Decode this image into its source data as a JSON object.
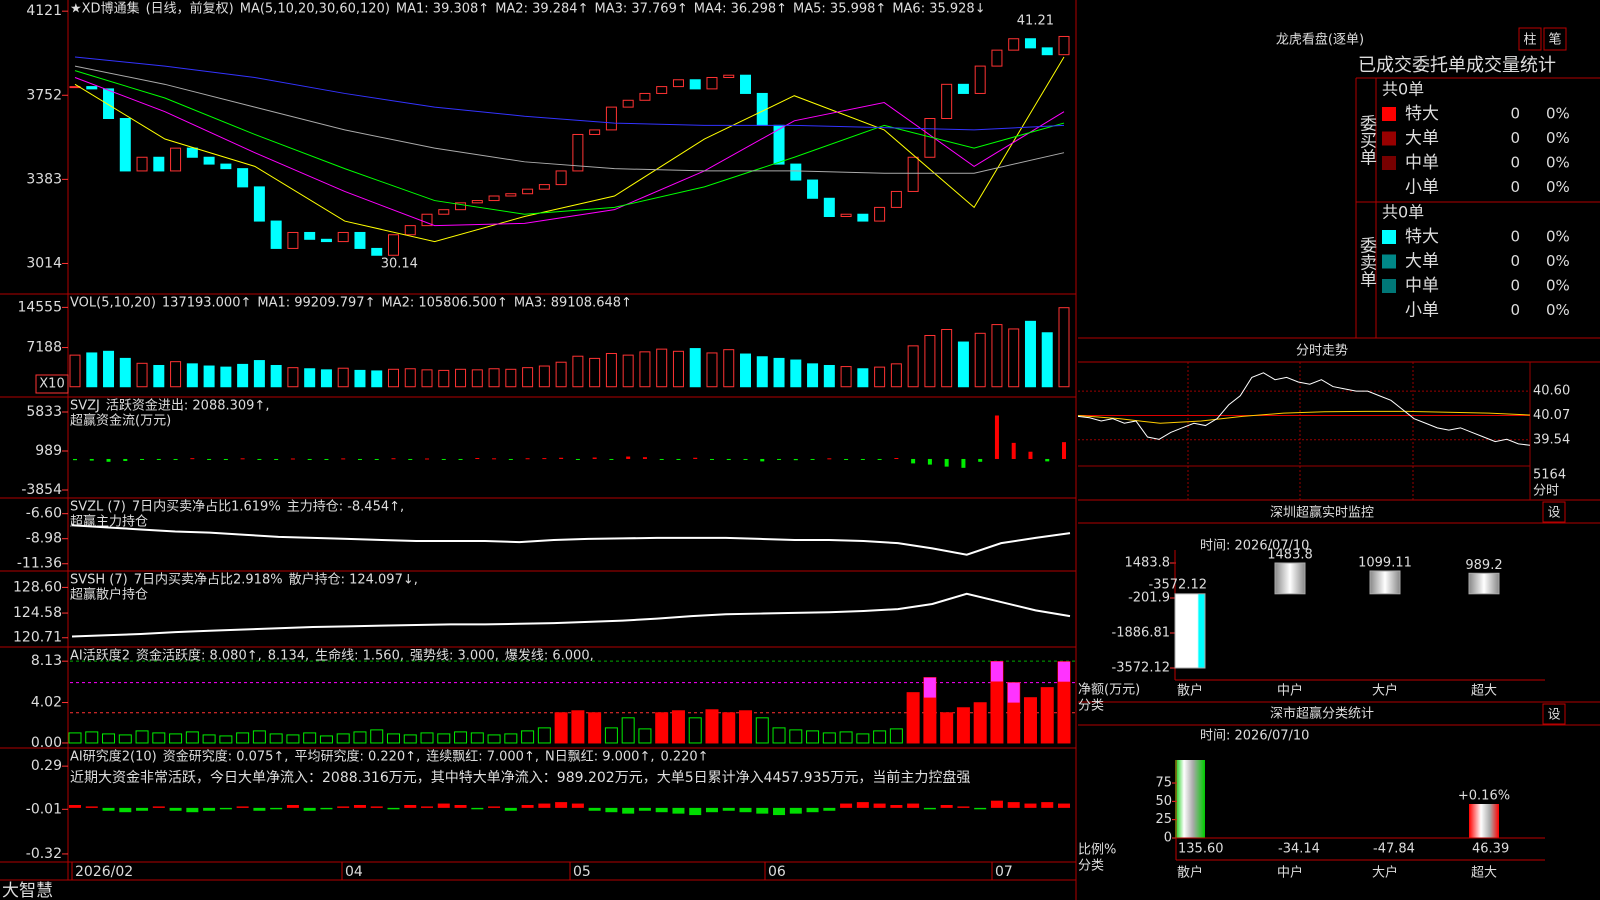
{
  "app_name": "大智慧",
  "price_panel": {
    "header": [
      {
        "text": "★XD博通集",
        "color": "#ffffff"
      },
      {
        "text": "(日线，前复权)",
        "color": "#ff3333"
      },
      {
        "text": "MA(5,10,20,30,60,120)",
        "color": "#dddddd"
      },
      {
        "text": "MA1: 39.308↑",
        "color": "#ffffff"
      },
      {
        "text": "MA2: 39.284↑",
        "color": "#ffff00"
      },
      {
        "text": "MA3: 37.769↑",
        "color": "#ff00ff"
      },
      {
        "text": "MA4: 36.298↑",
        "color": "#00ff00"
      },
      {
        "text": "MA5: 35.998↑",
        "color": "#cccccc"
      },
      {
        "text": "MA6: 35.928↓",
        "color": "#3333ff"
      }
    ],
    "yticks": [
      3014,
      3383,
      3752,
      4121
    ],
    "ylim": [
      2880,
      4170
    ],
    "high_label": "41.21",
    "low_label": "30.14",
    "closes": [
      3790,
      3780,
      3650,
      3420,
      3480,
      3420,
      3520,
      3480,
      3450,
      3430,
      3350,
      3200,
      3080,
      3150,
      3120,
      3110,
      3150,
      3080,
      3050,
      3140,
      3180,
      3230,
      3250,
      3280,
      3290,
      3310,
      3320,
      3340,
      3360,
      3420,
      3580,
      3600,
      3700,
      3730,
      3760,
      3790,
      3820,
      3780,
      3830,
      3840,
      3760,
      3620,
      3450,
      3380,
      3300,
      3220,
      3230,
      3200,
      3260,
      3330,
      3480,
      3650,
      3800,
      3760,
      3880,
      3950,
      4000,
      3960,
      3930,
      4010
    ],
    "up_color": "#ff3333",
    "down_color": "#00ffff",
    "ma_lines": [
      {
        "color": "#ffff00",
        "values": [
          3800,
          3560,
          3440,
          3200,
          3110,
          3220,
          3310,
          3560,
          3750,
          3600,
          3260,
          3920
        ]
      },
      {
        "color": "#ff00ff",
        "values": [
          3830,
          3680,
          3500,
          3330,
          3180,
          3190,
          3250,
          3420,
          3640,
          3720,
          3440,
          3680
        ]
      },
      {
        "color": "#00ff00",
        "values": [
          3860,
          3740,
          3580,
          3430,
          3290,
          3230,
          3260,
          3350,
          3480,
          3620,
          3520,
          3630
        ]
      },
      {
        "color": "#aaaaaa",
        "values": [
          3880,
          3800,
          3700,
          3600,
          3520,
          3460,
          3430,
          3420,
          3420,
          3410,
          3410,
          3500
        ]
      },
      {
        "color": "#3333ff",
        "values": [
          3920,
          3880,
          3830,
          3760,
          3700,
          3660,
          3630,
          3620,
          3620,
          3610,
          3600,
          3620
        ]
      }
    ]
  },
  "volume_panel": {
    "header": [
      {
        "text": "VOL(5,10,20)",
        "color": "#cccccc"
      },
      {
        "text": "137193.000↑",
        "color": "#ffffff"
      },
      {
        "text": "MA1: 99209.797↑",
        "color": "#ffff00"
      },
      {
        "text": "MA2: 105806.500↑",
        "color": "#ff00ff"
      },
      {
        "text": "MA3: 89108.648↑",
        "color": "#00ff00"
      }
    ],
    "unit_label": "X10",
    "yticks": [
      7188,
      14555
    ],
    "ylim": [
      -1880,
      17010
    ],
    "values": [
      5800,
      6200,
      6500,
      5200,
      4300,
      3900,
      4600,
      4200,
      3800,
      3600,
      4100,
      4800,
      3900,
      3500,
      3300,
      3100,
      3400,
      3000,
      2900,
      3200,
      3300,
      3100,
      3000,
      3200,
      3100,
      3300,
      3200,
      3500,
      3800,
      4500,
      5600,
      5200,
      6100,
      5800,
      6400,
      6900,
      6500,
      7000,
      6200,
      6800,
      6000,
      5500,
      5200,
      4900,
      4200,
      3900,
      3700,
      3300,
      3600,
      4200,
      7500,
      9400,
      10500,
      8200,
      9800,
      11400,
      10600,
      12000,
      9900,
      14500
    ]
  },
  "svzj_panel": {
    "header": [
      {
        "text": "SVZJ",
        "color": "#cccccc"
      },
      {
        "text": "活跃资金进出: 2088.309↑,",
        "color": "#ffffff"
      }
    ],
    "subtitle": "超赢资金流(万元)",
    "yticks": [
      -3854,
      989,
      5833
    ],
    "ylim": [
      -4848,
      7697
    ],
    "values": [
      -150,
      -200,
      -350,
      -250,
      -100,
      -80,
      -120,
      100,
      -60,
      -90,
      80,
      -70,
      -50,
      60,
      -40,
      -50,
      70,
      -60,
      -40,
      90,
      -30,
      60,
      -40,
      -50,
      120,
      80,
      -60,
      90,
      110,
      150,
      -40,
      180,
      -60,
      300,
      220,
      -80,
      -100,
      150,
      -60,
      -130,
      -70,
      -300,
      -120,
      -150,
      -90,
      80,
      -60,
      -100,
      -40,
      120,
      -550,
      -700,
      -950,
      -1100,
      -350,
      5400,
      2000,
      900,
      -300,
      2088
    ]
  },
  "svzl_panel": {
    "header": [
      {
        "text": "SVZL (7)",
        "color": "#cccccc"
      },
      {
        "text": "7日内买卖净占比1.619%",
        "color": "#ff3333"
      },
      {
        "text": "主力持仓: -8.454↑,",
        "color": "#ffffff"
      }
    ],
    "subtitle": "超赢主力持仓",
    "yticks": [
      {
        "value": -6.6,
        "label": "-6.60"
      },
      -8.98,
      -11.36
    ],
    "ylim": [
      -12.05,
      -5.11
    ],
    "values": [
      -7.7,
      -7.9,
      -8.1,
      -8.3,
      -8.4,
      -8.6,
      -8.8,
      -8.9,
      -9.0,
      -9.1,
      -9.2,
      -9.2,
      -9.2,
      -9.3,
      -9.1,
      -9.0,
      -8.95,
      -8.9,
      -8.9,
      -8.9,
      -9.0,
      -9.1,
      -9.1,
      -9.2,
      -9.4,
      -9.9,
      -10.5,
      -9.4,
      -8.9,
      -8.45
    ]
  },
  "svsh_panel": {
    "header": [
      {
        "text": "SVSH (7)",
        "color": "#cccccc"
      },
      {
        "text": "7日内买卖净占比2.918%",
        "color": "#00ff00"
      },
      {
        "text": "散户持仓: 124.097↓,",
        "color": "#ffffff"
      }
    ],
    "subtitle": "超赢散户持仓",
    "yticks": [
      {
        "value": 128.6,
        "label": "128.60"
      },
      124.58,
      120.71
    ],
    "ylim": [
      119.26,
      131.17
    ],
    "values": [
      120.9,
      121.1,
      121.3,
      121.6,
      121.8,
      122.0,
      122.2,
      122.4,
      122.5,
      122.6,
      122.7,
      122.8,
      122.8,
      122.9,
      123.0,
      123.2,
      123.4,
      123.7,
      124.1,
      124.4,
      124.5,
      124.6,
      124.7,
      124.9,
      125.2,
      126.0,
      127.6,
      126.3,
      125.0,
      124.1
    ]
  },
  "activity_panel": {
    "header": [
      {
        "text": "AI活跃度2",
        "color": "#cccccc"
      },
      {
        "text": "资金活跃度: 8.080↑,",
        "color": "#ffffff"
      },
      {
        "text": "8.134,",
        "color": "#ffff00"
      },
      {
        "text": "生命线: 1.560,",
        "color": "#ffffff"
      },
      {
        "text": "强势线: 3.000,",
        "color": "#ff3333"
      },
      {
        "text": "爆发线: 6.000,",
        "color": "#ff00ff"
      }
    ],
    "strong_line": 3,
    "burst_line": 6,
    "yticks": [
      8.13,
      4.02,
      {
        "value": 0,
        "label": "0.00"
      }
    ],
    "ylim": [
      -0.5,
      9.54
    ],
    "values": [
      1.0,
      1.1,
      0.9,
      0.8,
      1.2,
      1.0,
      0.9,
      1.1,
      0.8,
      0.7,
      1.0,
      1.2,
      0.9,
      0.8,
      1.0,
      0.7,
      0.9,
      1.1,
      1.3,
      0.9,
      0.8,
      1.0,
      0.9,
      1.1,
      1.0,
      0.8,
      0.9,
      1.2,
      1.5,
      3.0,
      3.2,
      3.0,
      1.5,
      2.5,
      1.4,
      3.0,
      3.2,
      2.5,
      3.3,
      3.0,
      3.2,
      2.5,
      1.5,
      1.3,
      1.2,
      1.0,
      1.1,
      0.9,
      1.2,
      1.4,
      5.0,
      6.5,
      3.0,
      3.5,
      4.0,
      8.1,
      6.0,
      4.5,
      5.5,
      8.08
    ]
  },
  "research_panel": {
    "header": [
      {
        "text": "AI研究度2(10)",
        "color": "#cccccc"
      },
      {
        "text": "资金研究度: 0.075↑,",
        "color": "#ffffff"
      },
      {
        "text": "平均研究度: 0.220↑,",
        "color": "#ffff00"
      },
      {
        "text": "连续飘红: 7.000↑,",
        "color": "#ff00ff"
      },
      {
        "text": "N日飘红: 9.000↑,",
        "color": "#ffffff"
      },
      {
        "text": "0.220↑",
        "color": "#3333ff"
      }
    ],
    "note": "近期大资金非常活跃，今日大单净流入：2088.316万元，其中特大单净流入：989.202万元，大单5日累计净入4457.935万元，当前主力控盘强",
    "yticks": [
      0.29,
      -0.01,
      -0.32
    ],
    "ylim": [
      -0.376,
      0.416
    ],
    "values": [
      0.02,
      0.01,
      -0.02,
      -0.03,
      -0.02,
      0.01,
      -0.02,
      -0.03,
      -0.02,
      -0.01,
      0.01,
      -0.02,
      -0.01,
      0.02,
      -0.02,
      -0.01,
      0.01,
      0.02,
      0.01,
      -0.01,
      0.02,
      0.01,
      0.03,
      0.02,
      -0.01,
      0.01,
      -0.02,
      0.02,
      0.03,
      0.04,
      0.03,
      -0.02,
      -0.03,
      -0.04,
      -0.02,
      -0.03,
      -0.04,
      -0.05,
      -0.03,
      -0.02,
      -0.03,
      -0.04,
      -0.05,
      -0.04,
      -0.03,
      -0.02,
      0.03,
      0.04,
      0.03,
      0.02,
      0.03,
      -0.01,
      0.02,
      0.01,
      -0.01,
      0.05,
      0.04,
      0.03,
      0.04,
      0.03
    ]
  },
  "x_axis": {
    "labels": [
      "2026/02",
      "04",
      "05",
      "06",
      "07"
    ]
  },
  "longhu": {
    "title": "龙虎看盘(逐单)",
    "buttons": [
      "柱",
      "笔"
    ],
    "subtitle": "已成交委托单成交量统计",
    "buy": {
      "side": "委买单",
      "total": "共0单",
      "rows": [
        {
          "label": "特大",
          "count": 0,
          "pct": "0%",
          "color": "#ff0000"
        },
        {
          "label": "大单",
          "count": 0,
          "pct": "0%",
          "color": "#990000"
        },
        {
          "label": "中单",
          "count": 0,
          "pct": "0%",
          "color": "#770000"
        },
        {
          "label": "小单",
          "count": 0,
          "pct": "0%"
        }
      ]
    },
    "sell": {
      "side": "委卖单",
      "total": "共0单",
      "rows": [
        {
          "label": "特大",
          "count": 0,
          "pct": "0%",
          "color": "#00ffff"
        },
        {
          "label": "大单",
          "count": 0,
          "pct": "0%",
          "color": "#008888"
        },
        {
          "label": "中单",
          "count": 0,
          "pct": "0%",
          "color": "#007777"
        },
        {
          "label": "小单",
          "count": 0,
          "pct": "0%"
        }
      ]
    }
  },
  "fenshi": {
    "title": "分时走势",
    "yticks": [
      {
        "value": 40.6,
        "label": "40.60"
      },
      40.07,
      39.54
    ],
    "ylim": [
      38.99,
      41.17
    ],
    "price": [
      40.05,
      40.02,
      39.95,
      40.0,
      39.9,
      39.95,
      39.6,
      39.55,
      39.7,
      39.8,
      39.9,
      39.85,
      40.0,
      40.3,
      40.5,
      40.9,
      41.0,
      40.85,
      40.9,
      40.8,
      40.75,
      40.85,
      40.7,
      40.65,
      40.6,
      40.6,
      40.5,
      40.4,
      40.2,
      40.0,
      39.9,
      39.8,
      39.75,
      39.8,
      39.7,
      39.6,
      39.5,
      39.55,
      39.45,
      39.42
    ],
    "avg": [
      40.07,
      40.0,
      39.9,
      39.95,
      40.05,
      40.12,
      40.15,
      40.16,
      40.16,
      40.14,
      40.12,
      40.08
    ],
    "volume_label": "5164",
    "time_label": "分时"
  },
  "monitor": {
    "title": "深圳超赢实时监控",
    "button": "设",
    "time": "时间: 2026/07/10",
    "yticks": [
      1483.8,
      -201.9,
      -1886.81,
      -3572.12
    ],
    "ylim": [
      -4631,
      3169
    ],
    "categories": [
      "散户",
      "中户",
      "大户",
      "超大"
    ],
    "values": [
      -3572.12,
      1483.8,
      1099.11,
      989.2
    ],
    "axis_label": "净额(万元)",
    "category_label": "分类"
  },
  "stats": {
    "title": "深市超赢分类统计",
    "button": "设",
    "time": "时间: 2026/07/10",
    "yticks": [
      75,
      50,
      25,
      0
    ],
    "ylim": [
      0,
      106.4
    ],
    "categories": [
      "散户",
      "中户",
      "大户",
      "超大"
    ],
    "values": [
      135.6,
      -34.14,
      -47.84,
      46.39
    ],
    "value_labels": [
      "135.60",
      "-34.14",
      "-47.84",
      "46.39"
    ],
    "label_colors": [
      "#ccff33",
      "#3366ff",
      "#00ffff",
      "#ffff00"
    ],
    "change_label": "+0.16%",
    "axis_label": "比例%",
    "category_label": "分类"
  }
}
